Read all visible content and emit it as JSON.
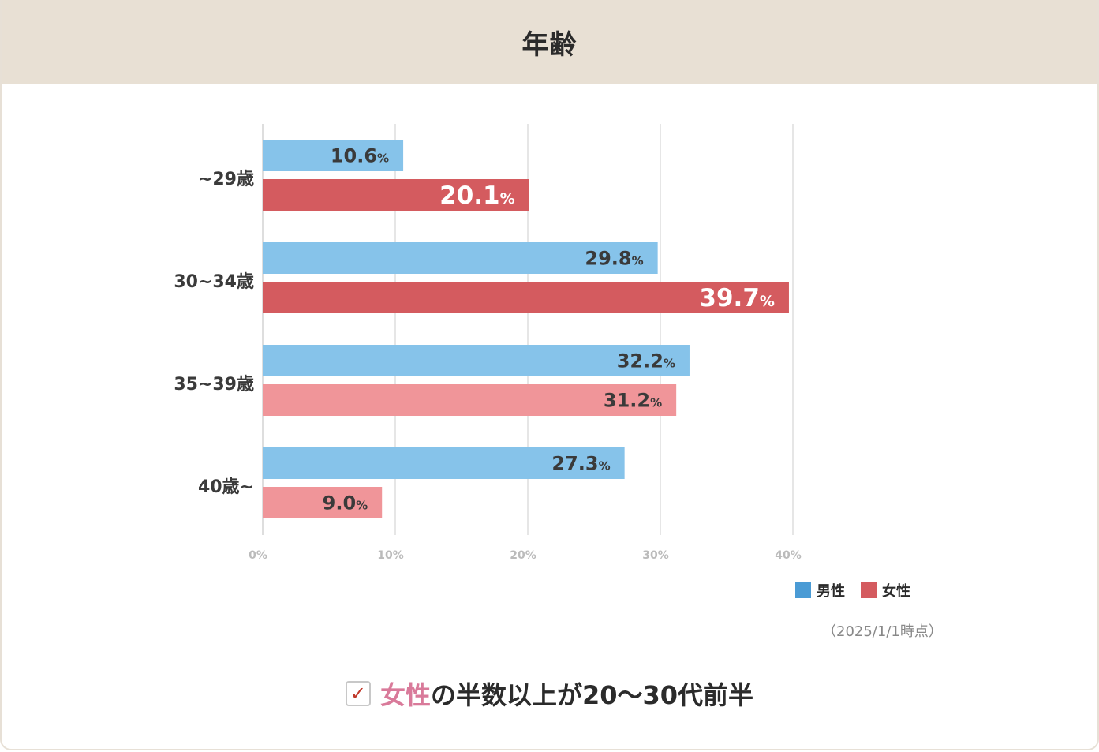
{
  "header": {
    "title": "年齢"
  },
  "chart_data": {
    "type": "bar",
    "orientation": "horizontal",
    "categories": [
      "~29歳",
      "30~34歳",
      "35~39歳",
      "40歳~"
    ],
    "series": [
      {
        "name": "男性",
        "values": [
          10.6,
          29.8,
          32.2,
          27.3
        ]
      },
      {
        "name": "女性",
        "values": [
          20.1,
          39.7,
          31.2,
          9.0
        ]
      }
    ],
    "highlighted_female_categories": [
      "~29歳",
      "30~34歳"
    ],
    "xlim": [
      0,
      40
    ],
    "xticks": [
      "0%",
      "10%",
      "20%",
      "30%",
      "40%"
    ],
    "value_suffix": "%",
    "grid": true,
    "legend_position": "bottom-right"
  },
  "colors": {
    "male_bar": "#86c3ea",
    "female_bar_highlight": "#d45b5f",
    "female_bar": "#f09599",
    "legend_male": "#4a9bd5",
    "legend_female": "#d45b5f",
    "grid": "#dedede",
    "axis_label": "#bbbbbb",
    "text_dark": "#3a3a3a",
    "accent_pink": "#d97a9a"
  },
  "legend": {
    "male_label": "男性",
    "female_label": "女性"
  },
  "note": "（2025/1/1時点）",
  "summary": {
    "highlight": "女性",
    "rest": "の半数以上が20〜30代前半",
    "check_icon": "✓"
  }
}
